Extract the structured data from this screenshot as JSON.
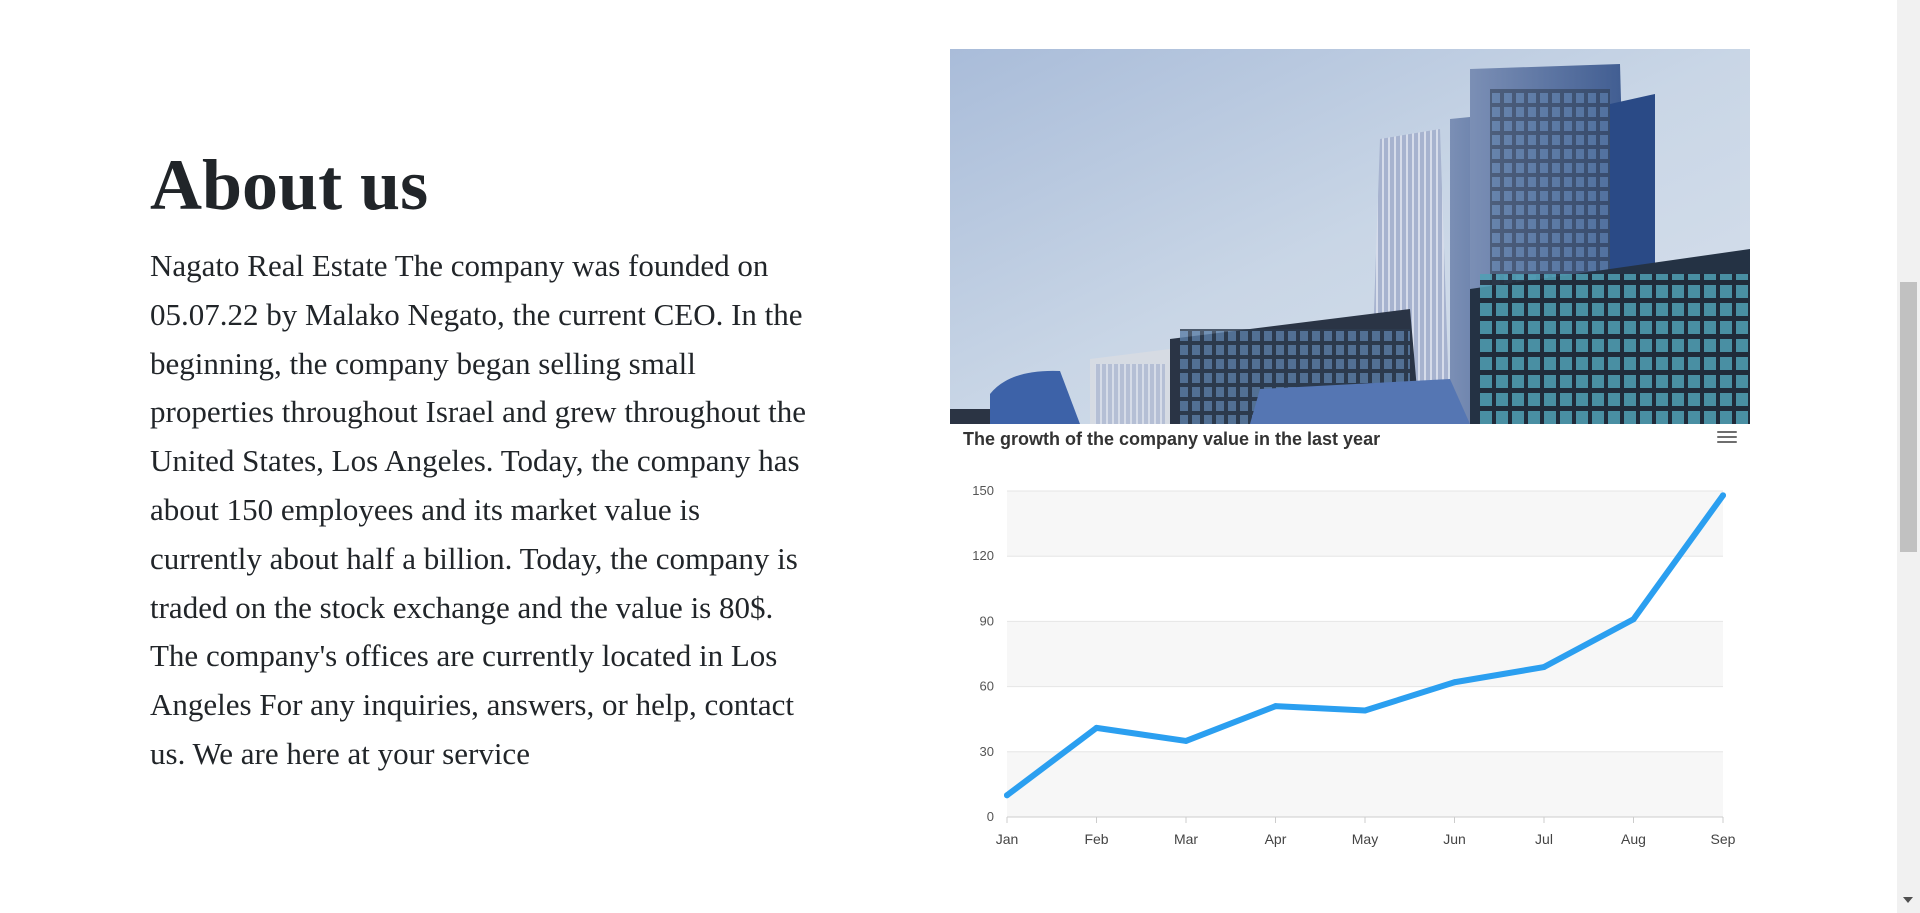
{
  "about": {
    "title": "About us",
    "text": "Nagato Real Estate The company was founded on 05.07.22 by Malako Negato, the current CEO. In the beginning, the company began selling small properties throughout Israel and grew throughout the United States, Los Angeles. Today, the company has about 150 employees and its market value is currently about half a billion. Today, the company is traded on the stock exchange and the value is 80$. The company's offices are currently located in Los Angeles For any inquiries, answers, or help, contact us. We are here at your service"
  },
  "hero_image": {
    "alt": "city office buildings"
  },
  "chart_menu": {
    "icon": "hamburger-menu-icon"
  },
  "colors": {
    "line": "#2b9ff0",
    "band": "#f7f7f7",
    "grid": "#e6e6e6"
  },
  "chart_data": {
    "type": "line",
    "title": "The growth of the company value in the last year",
    "categories": [
      "Jan",
      "Feb",
      "Mar",
      "Apr",
      "May",
      "Jun",
      "Jul",
      "Aug",
      "Sep"
    ],
    "series": [
      {
        "values": [
          10,
          41,
          35,
          51,
          49,
          62,
          69,
          91,
          148
        ]
      }
    ],
    "yticks": [
      0,
      30,
      60,
      90,
      120,
      150
    ],
    "ylim": [
      0,
      150
    ],
    "xlabel": "",
    "ylabel": "",
    "grid": true,
    "legend": "none"
  }
}
